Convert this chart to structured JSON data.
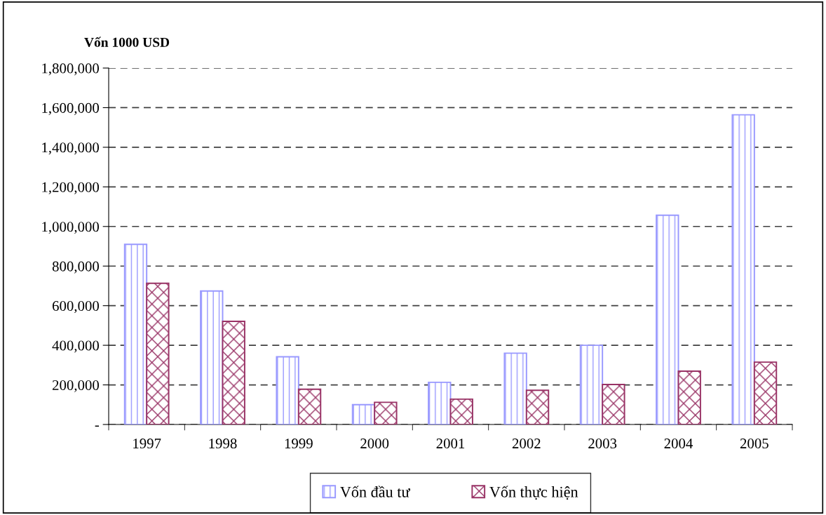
{
  "chart_data": {
    "type": "bar",
    "ylabel": "Vốn 1000 USD",
    "categories": [
      "1997",
      "1998",
      "1999",
      "2000",
      "2001",
      "2002",
      "2003",
      "2004",
      "2005"
    ],
    "series": [
      {
        "name": "Vốn đầu tư",
        "color": "#9999ff",
        "values": [
          910000,
          674000,
          342000,
          100000,
          213000,
          360000,
          400000,
          1057000,
          1564000
        ]
      },
      {
        "name": "Vốn thực hiện",
        "color": "#993366",
        "values": [
          713000,
          521000,
          178000,
          112000,
          128000,
          173000,
          202000,
          269000,
          315000
        ]
      }
    ],
    "ylim": [
      0,
      1800000
    ],
    "yticks": [
      {
        "value": 0,
        "label": "-"
      },
      {
        "value": 200000,
        "label": "200,000"
      },
      {
        "value": 400000,
        "label": "400,000"
      },
      {
        "value": 600000,
        "label": "600,000"
      },
      {
        "value": 800000,
        "label": "800,000"
      },
      {
        "value": 1000000,
        "label": "1,000,000"
      },
      {
        "value": 1200000,
        "label": "1,200,000"
      },
      {
        "value": 1400000,
        "label": "1,400,000"
      },
      {
        "value": 1600000,
        "label": "1,600,000"
      },
      {
        "value": 1800000,
        "label": "1,800,000"
      }
    ],
    "grid": "y",
    "legend": "bottom"
  }
}
